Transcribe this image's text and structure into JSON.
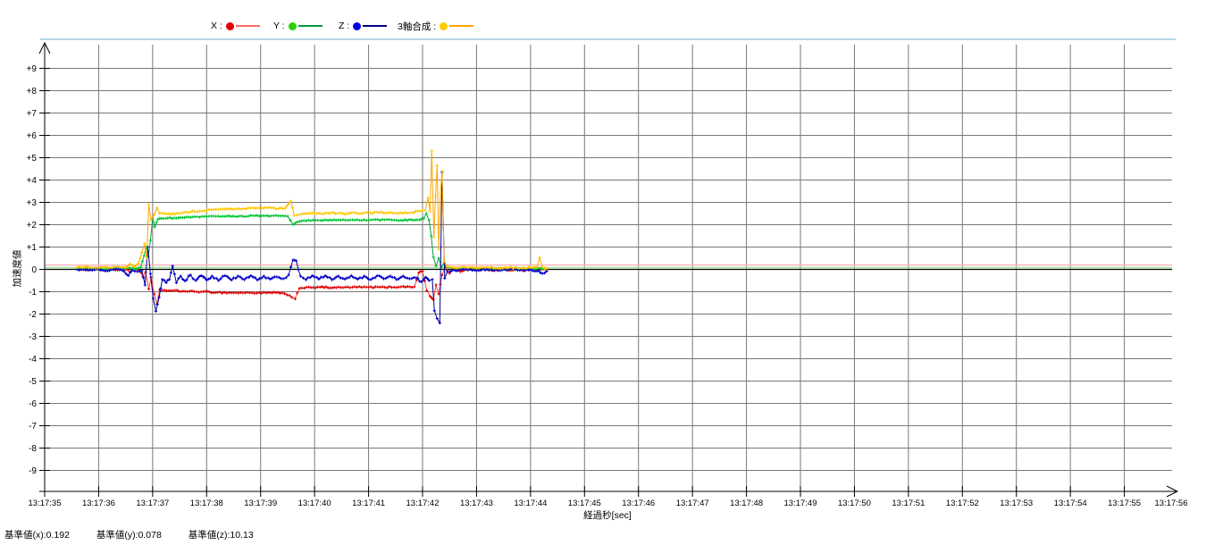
{
  "legend": {
    "items": [
      {
        "label": "X :",
        "dot_color": "#e60000",
        "line_color": "#ff6a6a"
      },
      {
        "label": "Y :",
        "dot_color": "#2bd100",
        "line_color": "#00993d"
      },
      {
        "label": "Z :",
        "dot_color": "#0000e0",
        "line_color": "#000080"
      },
      {
        "label": "3軸合成 :",
        "dot_color": "#ffcc00",
        "line_color": "#ffa500"
      }
    ]
  },
  "footer": {
    "items": [
      "基準値(x):0.192",
      "基準値(y):0.078",
      "基準値(z):10.13"
    ]
  },
  "chart_data": {
    "type": "line",
    "title": "",
    "xlabel": "経過秒[sec]",
    "ylabel": "加速度値",
    "x_base_time": "13:17:35",
    "x_tick_labels": [
      "13:17:35",
      "13:17:36",
      "13:17:37",
      "13:17:38",
      "13:17:39",
      "13:17:40",
      "13:17:41",
      "13:17:42",
      "13:17:43",
      "13:17:44",
      "13:17:45",
      "13:17:46",
      "13:17:47",
      "13:17:48",
      "13:17:49",
      "13:17:50",
      "13:17:51",
      "13:17:52",
      "13:17:53",
      "13:17:54",
      "13:17:55",
      "13:17:56"
    ],
    "y_tick_labels": [
      "+9",
      "+8",
      "+7",
      "+6",
      "+5",
      "+4",
      "+3",
      "+2",
      "+1",
      "0",
      "-1",
      "-2",
      "-3",
      "-4",
      "-5",
      "-6",
      "-7",
      "-8",
      "-9"
    ],
    "y_tick_values": [
      9,
      8,
      7,
      6,
      5,
      4,
      3,
      2,
      1,
      0,
      -1,
      -2,
      -3,
      -4,
      -5,
      -6,
      -7,
      -8,
      -9
    ],
    "ylim": [
      -10,
      10
    ],
    "xlim_sec": [
      0,
      21
    ],
    "grid": true,
    "legend_position": "top",
    "grid_color": "#787878",
    "zero_line_color": "#000000",
    "reference_lines": [
      {
        "name": "基準値(x)",
        "value": 0.192,
        "color": "#ffb3ba"
      },
      {
        "name": "基準値(y)",
        "value": 0.078,
        "color": "#99e699"
      }
    ],
    "reference_values": {
      "x": 0.192,
      "y": 0.078,
      "z": 10.13
    },
    "series": [
      {
        "name": "X",
        "color": "#ff4444",
        "marker_color": "#dd0000",
        "jitter": 0.03,
        "points": [
          [
            0.6,
            0.02
          ],
          [
            0.75,
            -0.03
          ],
          [
            0.9,
            0.03
          ],
          [
            1.05,
            -0.02
          ],
          [
            1.2,
            0.03
          ],
          [
            1.35,
            -0.03
          ],
          [
            1.5,
            0.02
          ],
          [
            1.58,
            -0.12
          ],
          [
            1.66,
            0.04
          ],
          [
            1.76,
            -0.06
          ],
          [
            1.82,
            -0.32
          ],
          [
            1.87,
            -0.12
          ],
          [
            1.93,
            -0.88
          ],
          [
            1.97,
            -0.35
          ],
          [
            2.03,
            -1.1
          ],
          [
            2.08,
            -1.55
          ],
          [
            2.13,
            -0.92
          ],
          [
            2.3,
            -0.95
          ],
          [
            2.6,
            -0.98
          ],
          [
            2.9,
            -1.0
          ],
          [
            3.2,
            -1.03
          ],
          [
            3.5,
            -1.05
          ],
          [
            3.8,
            -1.05
          ],
          [
            4.1,
            -1.05
          ],
          [
            4.4,
            -1.05
          ],
          [
            4.58,
            -1.25
          ],
          [
            4.64,
            -1.32
          ],
          [
            4.72,
            -0.85
          ],
          [
            4.85,
            -0.8
          ],
          [
            5.1,
            -0.8
          ],
          [
            5.4,
            -0.82
          ],
          [
            5.7,
            -0.8
          ],
          [
            6.0,
            -0.8
          ],
          [
            6.3,
            -0.8
          ],
          [
            6.6,
            -0.78
          ],
          [
            6.85,
            -0.78
          ],
          [
            6.93,
            -0.15
          ],
          [
            7.0,
            -0.08
          ],
          [
            7.08,
            -0.95
          ],
          [
            7.14,
            -1.2
          ],
          [
            7.2,
            -1.35
          ],
          [
            7.25,
            -0.7
          ],
          [
            7.3,
            -1.1
          ],
          [
            7.36,
            -0.25
          ],
          [
            7.42,
            0.1
          ],
          [
            7.5,
            -0.18
          ],
          [
            7.58,
            0.05
          ],
          [
            7.7,
            -0.1
          ],
          [
            7.85,
            0.02
          ],
          [
            8.0,
            -0.05
          ],
          [
            8.15,
            0.03
          ],
          [
            8.3,
            -0.04
          ],
          [
            8.45,
            0.02
          ],
          [
            8.6,
            -0.05
          ],
          [
            8.75,
            0.02
          ],
          [
            8.9,
            -0.04
          ],
          [
            9.05,
            0.02
          ],
          [
            9.15,
            -0.05
          ],
          [
            9.25,
            0.02
          ],
          [
            9.3,
            -0.02
          ]
        ]
      },
      {
        "name": "Y",
        "color": "#00a040",
        "marker_color": "#00c832",
        "jitter": 0.025,
        "points": [
          [
            0.6,
            0.02
          ],
          [
            0.8,
            0.0
          ],
          [
            1.0,
            0.03
          ],
          [
            1.2,
            0.0
          ],
          [
            1.4,
            0.02
          ],
          [
            1.55,
            0.08
          ],
          [
            1.7,
            0.02
          ],
          [
            1.78,
            0.1
          ],
          [
            1.84,
            0.6
          ],
          [
            1.88,
            1.0
          ],
          [
            1.92,
            0.55
          ],
          [
            1.96,
            1.3
          ],
          [
            2.0,
            2.3
          ],
          [
            2.04,
            1.9
          ],
          [
            2.1,
            2.25
          ],
          [
            2.2,
            2.28
          ],
          [
            2.4,
            2.3
          ],
          [
            2.7,
            2.33
          ],
          [
            3.0,
            2.36
          ],
          [
            3.3,
            2.38
          ],
          [
            3.6,
            2.38
          ],
          [
            3.9,
            2.4
          ],
          [
            4.2,
            2.4
          ],
          [
            4.5,
            2.38
          ],
          [
            4.6,
            2.0
          ],
          [
            4.68,
            2.12
          ],
          [
            4.8,
            2.18
          ],
          [
            5.1,
            2.2
          ],
          [
            5.4,
            2.2
          ],
          [
            5.7,
            2.22
          ],
          [
            6.0,
            2.2
          ],
          [
            6.3,
            2.22
          ],
          [
            6.6,
            2.2
          ],
          [
            6.9,
            2.22
          ],
          [
            7.02,
            2.28
          ],
          [
            7.07,
            2.5
          ],
          [
            7.12,
            2.2
          ],
          [
            7.16,
            1.5
          ],
          [
            7.2,
            0.55
          ],
          [
            7.25,
            0.15
          ],
          [
            7.3,
            0.5
          ],
          [
            7.35,
            0.1
          ],
          [
            7.4,
            0.3
          ],
          [
            7.46,
            0.08
          ],
          [
            7.6,
            0.04
          ],
          [
            7.8,
            0.0
          ],
          [
            8.0,
            0.03
          ],
          [
            8.2,
            0.0
          ],
          [
            8.4,
            0.03
          ],
          [
            8.6,
            0.0
          ],
          [
            8.8,
            0.02
          ],
          [
            9.0,
            0.0
          ],
          [
            9.15,
            0.04
          ],
          [
            9.3,
            0.02
          ]
        ]
      },
      {
        "name": "Z",
        "color": "#00008b",
        "marker_color": "#0000d0",
        "jitter": 0.045,
        "points": [
          [
            0.6,
            0.0
          ],
          [
            0.8,
            -0.04
          ],
          [
            1.0,
            0.02
          ],
          [
            1.2,
            -0.05
          ],
          [
            1.4,
            0.0
          ],
          [
            1.55,
            -0.28
          ],
          [
            1.62,
            -0.05
          ],
          [
            1.72,
            -0.1
          ],
          [
            1.8,
            -0.05
          ],
          [
            1.86,
            -0.7
          ],
          [
            1.91,
            1.0
          ],
          [
            1.96,
            -0.2
          ],
          [
            2.01,
            -1.3
          ],
          [
            2.06,
            -1.87
          ],
          [
            2.12,
            -1.25
          ],
          [
            2.18,
            -0.45
          ],
          [
            2.25,
            -0.6
          ],
          [
            2.31,
            -0.45
          ],
          [
            2.37,
            0.15
          ],
          [
            2.44,
            -0.6
          ],
          [
            2.52,
            -0.3
          ],
          [
            2.6,
            -0.52
          ],
          [
            2.7,
            -0.25
          ],
          [
            2.8,
            -0.5
          ],
          [
            2.9,
            -0.28
          ],
          [
            3.0,
            -0.48
          ],
          [
            3.1,
            -0.3
          ],
          [
            3.22,
            -0.5
          ],
          [
            3.34,
            -0.28
          ],
          [
            3.46,
            -0.48
          ],
          [
            3.58,
            -0.3
          ],
          [
            3.7,
            -0.46
          ],
          [
            3.82,
            -0.28
          ],
          [
            3.94,
            -0.48
          ],
          [
            4.06,
            -0.3
          ],
          [
            4.18,
            -0.44
          ],
          [
            4.3,
            -0.34
          ],
          [
            4.42,
            -0.42
          ],
          [
            4.52,
            -0.25
          ],
          [
            4.6,
            0.42
          ],
          [
            4.66,
            0.38
          ],
          [
            4.74,
            -0.3
          ],
          [
            4.84,
            -0.46
          ],
          [
            4.96,
            -0.28
          ],
          [
            5.08,
            -0.44
          ],
          [
            5.2,
            -0.28
          ],
          [
            5.32,
            -0.46
          ],
          [
            5.44,
            -0.3
          ],
          [
            5.56,
            -0.44
          ],
          [
            5.68,
            -0.28
          ],
          [
            5.8,
            -0.44
          ],
          [
            5.92,
            -0.3
          ],
          [
            6.04,
            -0.46
          ],
          [
            6.16,
            -0.28
          ],
          [
            6.28,
            -0.42
          ],
          [
            6.4,
            -0.3
          ],
          [
            6.52,
            -0.46
          ],
          [
            6.64,
            -0.3
          ],
          [
            6.76,
            -0.42
          ],
          [
            6.88,
            -0.38
          ],
          [
            6.98,
            -0.55
          ],
          [
            7.06,
            -0.35
          ],
          [
            7.12,
            -0.5
          ],
          [
            7.18,
            -0.45
          ],
          [
            7.22,
            -1.85
          ],
          [
            7.27,
            -2.2
          ],
          [
            7.32,
            -2.4
          ],
          [
            7.36,
            4.35
          ],
          [
            7.41,
            -0.4
          ],
          [
            7.46,
            -0.1
          ],
          [
            7.6,
            -0.05
          ],
          [
            7.8,
            0.02
          ],
          [
            8.0,
            -0.05
          ],
          [
            8.2,
            0.02
          ],
          [
            8.4,
            -0.05
          ],
          [
            8.6,
            0.0
          ],
          [
            8.8,
            -0.04
          ],
          [
            9.0,
            0.0
          ],
          [
            9.12,
            -0.08
          ],
          [
            9.22,
            -0.18
          ],
          [
            9.3,
            -0.08
          ]
        ]
      },
      {
        "name": "3軸合成",
        "color": "#ffa500",
        "marker_color": "#ffc800",
        "jitter": 0.035,
        "points": [
          [
            0.6,
            0.08
          ],
          [
            0.75,
            0.12
          ],
          [
            0.9,
            0.07
          ],
          [
            1.05,
            0.12
          ],
          [
            1.2,
            0.08
          ],
          [
            1.35,
            0.12
          ],
          [
            1.5,
            0.08
          ],
          [
            1.58,
            0.25
          ],
          [
            1.66,
            0.12
          ],
          [
            1.74,
            0.28
          ],
          [
            1.8,
            0.75
          ],
          [
            1.85,
            1.15
          ],
          [
            1.89,
            0.5
          ],
          [
            1.93,
            2.9
          ],
          [
            1.97,
            2.2
          ],
          [
            2.03,
            2.45
          ],
          [
            2.08,
            2.75
          ],
          [
            2.13,
            2.5
          ],
          [
            2.25,
            2.48
          ],
          [
            2.45,
            2.52
          ],
          [
            2.7,
            2.58
          ],
          [
            3.0,
            2.64
          ],
          [
            3.3,
            2.7
          ],
          [
            3.6,
            2.72
          ],
          [
            3.9,
            2.74
          ],
          [
            4.2,
            2.75
          ],
          [
            4.45,
            2.72
          ],
          [
            4.56,
            3.05
          ],
          [
            4.62,
            2.42
          ],
          [
            4.72,
            2.46
          ],
          [
            5.0,
            2.5
          ],
          [
            5.3,
            2.52
          ],
          [
            5.6,
            2.5
          ],
          [
            5.9,
            2.52
          ],
          [
            6.2,
            2.54
          ],
          [
            6.5,
            2.52
          ],
          [
            6.8,
            2.55
          ],
          [
            6.95,
            2.6
          ],
          [
            7.05,
            2.65
          ],
          [
            7.1,
            3.2
          ],
          [
            7.14,
            2.6
          ],
          [
            7.17,
            5.3
          ],
          [
            7.21,
            1.45
          ],
          [
            7.24,
            3.3
          ],
          [
            7.27,
            4.65
          ],
          [
            7.3,
            0.9
          ],
          [
            7.33,
            3.4
          ],
          [
            7.36,
            4.4
          ],
          [
            7.4,
            0.35
          ],
          [
            7.46,
            0.12
          ],
          [
            7.6,
            0.08
          ],
          [
            7.8,
            0.1
          ],
          [
            8.0,
            0.06
          ],
          [
            8.2,
            0.1
          ],
          [
            8.4,
            0.06
          ],
          [
            8.6,
            0.08
          ],
          [
            8.8,
            0.05
          ],
          [
            9.0,
            0.08
          ],
          [
            9.12,
            0.1
          ],
          [
            9.17,
            0.52
          ],
          [
            9.22,
            0.1
          ],
          [
            9.3,
            0.05
          ]
        ]
      }
    ]
  }
}
